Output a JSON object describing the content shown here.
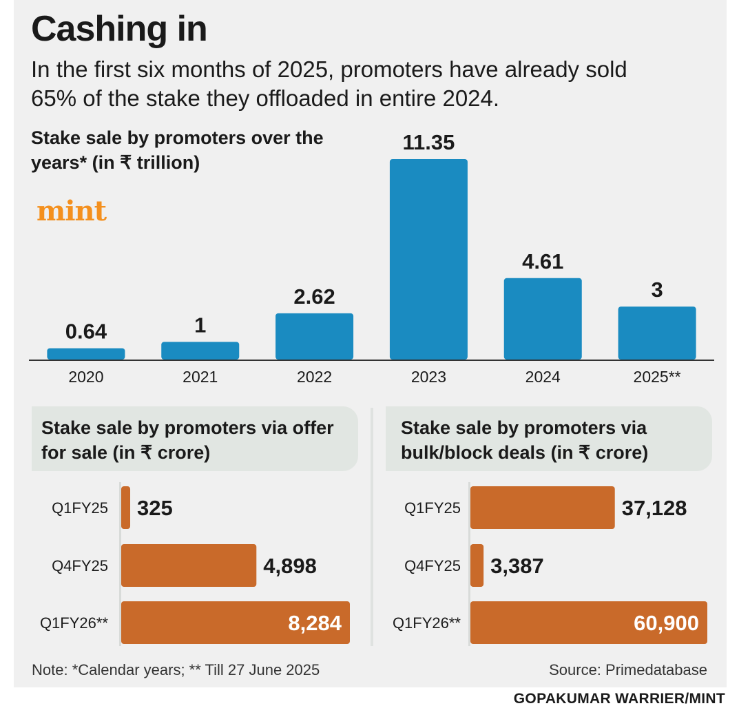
{
  "title": "Cashing in",
  "subtitle": "In the first six months of 2025, promoters have already sold 65% of the stake they offloaded in entire 2024.",
  "logo": "mint",
  "colors": {
    "bar_blue": "#1a8bc1",
    "bar_orange": "#c96a2a",
    "logo_orange": "#f4901e",
    "panel_bg": "#f0f0f0",
    "header_box": "#e1e6e2"
  },
  "chart_data": [
    {
      "type": "bar",
      "title": "Stake sale by promoters over the years* (in ₹ trillion)",
      "categories": [
        "2020",
        "2021",
        "2022",
        "2023",
        "2024",
        "2025**"
      ],
      "values": [
        0.64,
        1,
        2.62,
        11.35,
        4.61,
        3
      ],
      "value_labels": [
        "0.64",
        "1",
        "2.62",
        "11.35",
        "4.61",
        "3"
      ],
      "ylim": [
        0,
        11.35
      ],
      "grid": false
    },
    {
      "type": "bar",
      "orientation": "horizontal",
      "title": "Stake sale by promoters via offer for sale (in ₹ crore)",
      "categories": [
        "Q1FY25",
        "Q4FY25",
        "Q1FY26**"
      ],
      "values": [
        325,
        4898,
        8284
      ],
      "value_labels": [
        "325",
        "4,898",
        "8,284"
      ],
      "xlim": [
        0,
        8284
      ]
    },
    {
      "type": "bar",
      "orientation": "horizontal",
      "title": "Stake sale by promoters via bulk/block deals (in ₹ crore)",
      "categories": [
        "Q1FY25",
        "Q4FY25",
        "Q1FY26**"
      ],
      "values": [
        37128,
        3387,
        60900
      ],
      "value_labels": [
        "37,128",
        "3,387",
        "60,900"
      ],
      "xlim": [
        0,
        60900
      ]
    }
  ],
  "footer": {
    "note": "Note: *Calendar years; ** Till 27 June 2025",
    "source": "Source: Primedatabase",
    "credit": "GOPAKUMAR WARRIER/MINT"
  }
}
